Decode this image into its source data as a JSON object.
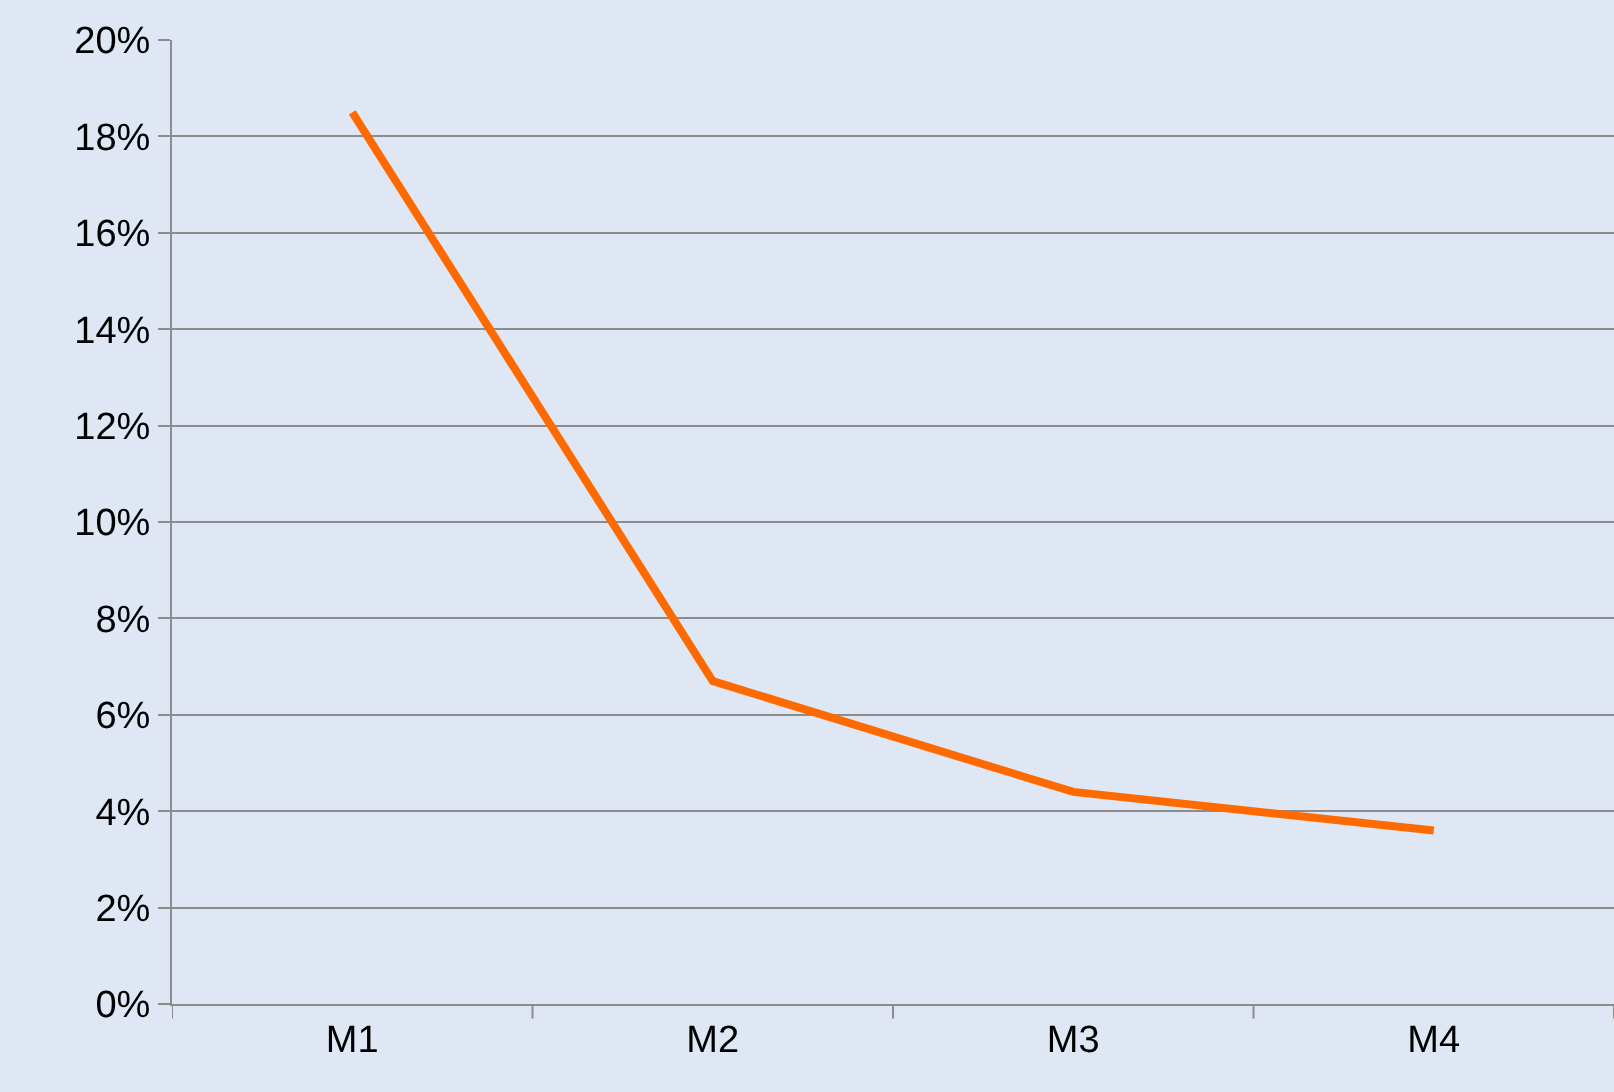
{
  "chart_data": {
    "type": "line",
    "categories": [
      "M1",
      "M2",
      "M3",
      "M4"
    ],
    "series": [
      {
        "color": "#ff6a00",
        "values": [
          18.5,
          6.7,
          4.4,
          3.6
        ]
      }
    ],
    "ylim": [
      0,
      20
    ],
    "yticks": [
      {
        "value": 0,
        "label": "0%"
      },
      {
        "value": 2,
        "label": "2%"
      },
      {
        "value": 4,
        "label": "4%"
      },
      {
        "value": 6,
        "label": "6%"
      },
      {
        "value": 8,
        "label": "8%"
      },
      {
        "value": 10,
        "label": "10%"
      },
      {
        "value": 12,
        "label": "12%"
      },
      {
        "value": 14,
        "label": "14%"
      },
      {
        "value": 16,
        "label": "16%"
      },
      {
        "value": 18,
        "label": "18%"
      },
      {
        "value": 20,
        "label": "20%"
      }
    ],
    "grid": "y"
  }
}
